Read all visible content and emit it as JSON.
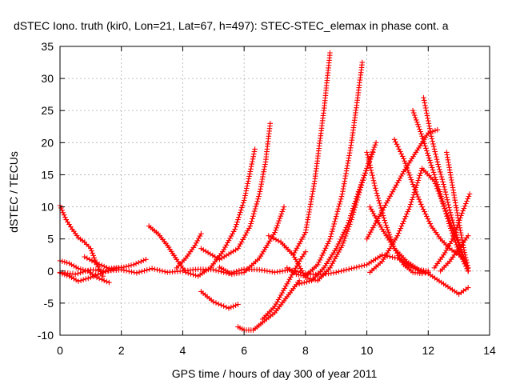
{
  "chart_data": {
    "type": "scatter",
    "title": "dSTEC Iono. truth (kir0, Lon=21, Lat=67, h=497): STEC-STEC_elemax in phase cont. a",
    "xlabel": "GPS time / hours of day 300 of year 2011",
    "ylabel": "dSTEC  / TECUs",
    "xlim": [
      0,
      14
    ],
    "ylim": [
      -10,
      35
    ],
    "xticks": [
      "0",
      "2",
      "4",
      "6",
      "8",
      "10",
      "12",
      "14"
    ],
    "yticks": [
      "-10",
      "-5",
      "0",
      "5",
      "10",
      "15",
      "20",
      "25",
      "30",
      "35"
    ],
    "grid": true,
    "marker": "+",
    "color": "#ff0000",
    "series": [
      {
        "x": [
          0.0,
          0.2,
          0.4,
          0.6,
          0.8,
          1.0,
          1.2,
          1.4
        ],
        "y": [
          10.2,
          8.0,
          6.5,
          5.2,
          4.5,
          3.5,
          1.0,
          -0.8
        ]
      },
      {
        "x": [
          0.0,
          0.3,
          0.6,
          0.9,
          1.2,
          1.6
        ],
        "y": [
          1.6,
          1.2,
          0.4,
          0.0,
          -1.0,
          -1.8
        ]
      },
      {
        "x": [
          0.0,
          0.3,
          0.6,
          1.0,
          1.4,
          1.8,
          2.0
        ],
        "y": [
          -0.3,
          -0.8,
          -1.6,
          -1.0,
          -0.2,
          0.4,
          0.6
        ]
      },
      {
        "x": [
          0.8,
          1.2,
          1.6,
          2.0,
          2.4,
          2.8
        ],
        "y": [
          2.2,
          1.2,
          0.4,
          0.5,
          1.0,
          1.8
        ]
      },
      {
        "x": [
          0.0,
          0.5,
          1.0,
          1.5,
          2.0,
          2.5,
          3.0,
          3.5,
          4.0,
          4.5,
          5.0,
          5.5,
          6.0,
          6.5,
          7.0,
          7.5,
          8.0,
          8.5,
          9.0,
          9.5,
          10.0,
          10.5,
          11.0,
          11.5,
          12.0,
          12.5,
          13.0,
          13.3
        ],
        "y": [
          -0.2,
          -0.5,
          0.2,
          0.0,
          0.2,
          -0.3,
          0.4,
          -0.2,
          0.0,
          0.3,
          0.2,
          -0.4,
          0.3,
          0.2,
          -0.2,
          0.2,
          -0.4,
          -0.6,
          -0.2,
          0.4,
          1.0,
          2.5,
          2.0,
          0.5,
          -0.4,
          -2.0,
          -3.6,
          -2.6
        ]
      },
      {
        "x": [
          2.9,
          3.2,
          3.5,
          3.8,
          4.1,
          4.5,
          4.9,
          5.3,
          5.7,
          6.0,
          6.2,
          6.35
        ],
        "y": [
          7.0,
          5.8,
          4.0,
          1.8,
          -0.2,
          -0.8,
          0.5,
          3.0,
          6.5,
          11.0,
          15.5,
          19.0
        ]
      },
      {
        "x": [
          3.8,
          4.1,
          4.4,
          4.6
        ],
        "y": [
          0.5,
          2.0,
          4.0,
          5.8
        ]
      },
      {
        "x": [
          4.6,
          5.2,
          5.8,
          6.2,
          6.5,
          6.7,
          6.85
        ],
        "y": [
          3.5,
          1.8,
          3.5,
          7.0,
          12.0,
          17.0,
          23.0
        ]
      },
      {
        "x": [
          4.6,
          5.0,
          5.5,
          5.8
        ],
        "y": [
          -3.2,
          -4.8,
          -5.8,
          -5.2
        ]
      },
      {
        "x": [
          5.2,
          5.6,
          6.0,
          6.5,
          7.0,
          7.3
        ],
        "y": [
          0.6,
          -0.5,
          -0.2,
          2.0,
          6.0,
          10.0
        ]
      },
      {
        "x": [
          5.8,
          6.0,
          6.3,
          6.6,
          7.0,
          7.4,
          7.8
        ],
        "y": [
          -8.7,
          -9.2,
          -9.2,
          -8.0,
          -6.5,
          -4.0,
          -1.5
        ]
      },
      {
        "x": [
          6.8,
          7.2,
          7.6,
          8.0,
          8.3,
          8.6,
          8.8
        ],
        "y": [
          5.5,
          4.5,
          2.5,
          6.0,
          14.0,
          25.0,
          34.0
        ]
      },
      {
        "x": [
          6.6,
          7.0,
          7.4,
          7.8,
          8.0
        ],
        "y": [
          -7.5,
          -5.5,
          -2.0,
          1.5,
          3.0
        ]
      },
      {
        "x": [
          7.4,
          7.7,
          8.0,
          8.4,
          8.8,
          9.2,
          9.5,
          9.7,
          9.85
        ],
        "y": [
          0.5,
          -0.5,
          -0.8,
          1.0,
          5.0,
          12.0,
          20.0,
          27.0,
          32.5
        ]
      },
      {
        "x": [
          7.6,
          8.0,
          8.4,
          8.8,
          9.2,
          9.5,
          9.8,
          10.1,
          10.3
        ],
        "y": [
          2.5,
          -1.0,
          -1.5,
          0.5,
          4.0,
          8.0,
          13.0,
          17.5,
          20.0
        ]
      },
      {
        "x": [
          7.8,
          8.2,
          8.6,
          9.0,
          9.4,
          9.7,
          10.0,
          10.2
        ],
        "y": [
          -2.0,
          -1.5,
          0.5,
          3.5,
          7.5,
          12.0,
          16.0,
          18.5
        ]
      },
      {
        "x": [
          10.0,
          10.3,
          10.6,
          10.9,
          11.2,
          11.5,
          11.8,
          12.0
        ],
        "y": [
          18.5,
          12.5,
          7.5,
          3.5,
          1.0,
          -0.2,
          -0.4,
          -0.2
        ]
      },
      {
        "x": [
          10.1,
          10.5,
          10.9,
          11.3,
          11.7,
          12.0
        ],
        "y": [
          10.0,
          6.5,
          3.5,
          1.5,
          0.2,
          0.0
        ]
      },
      {
        "x": [
          10.1,
          10.5,
          11.0,
          11.4,
          11.8,
          12.2,
          12.6,
          13.0,
          13.3
        ],
        "y": [
          -0.2,
          1.5,
          5.5,
          10.0,
          16.0,
          14.0,
          9.0,
          4.0,
          0.0
        ]
      },
      {
        "x": [
          10.0,
          10.4,
          10.8,
          11.2,
          11.6,
          12.0,
          12.3
        ],
        "y": [
          5.0,
          8.5,
          12.0,
          15.5,
          18.5,
          21.5,
          22.0
        ]
      },
      {
        "x": [
          10.9,
          11.2,
          11.5,
          11.8,
          12.1,
          12.4,
          12.7,
          13.0,
          13.2
        ],
        "y": [
          20.5,
          17.5,
          13.5,
          10.0,
          7.0,
          5.0,
          3.5,
          2.5,
          1.5
        ]
      },
      {
        "x": [
          11.5,
          11.8,
          12.1,
          12.4,
          12.7,
          13.0,
          13.3
        ],
        "y": [
          25.0,
          21.0,
          16.5,
          12.0,
          7.0,
          3.0,
          0.0
        ]
      },
      {
        "x": [
          11.85,
          12.1,
          12.3,
          12.5,
          12.7,
          12.9,
          13.1,
          13.3
        ],
        "y": [
          27.0,
          21.0,
          17.0,
          13.5,
          9.5,
          6.0,
          3.0,
          0.0
        ]
      },
      {
        "x": [
          12.6,
          12.8,
          13.0,
          13.2,
          13.3
        ],
        "y": [
          18.5,
          13.0,
          7.5,
          2.5,
          0.5
        ]
      },
      {
        "x": [
          12.2,
          12.5,
          12.8,
          13.1,
          13.35
        ],
        "y": [
          0.5,
          2.5,
          5.0,
          9.0,
          12.0
        ]
      },
      {
        "x": [
          12.4,
          12.7,
          13.0,
          13.3
        ],
        "y": [
          0.0,
          1.5,
          3.5,
          5.5
        ]
      }
    ]
  }
}
